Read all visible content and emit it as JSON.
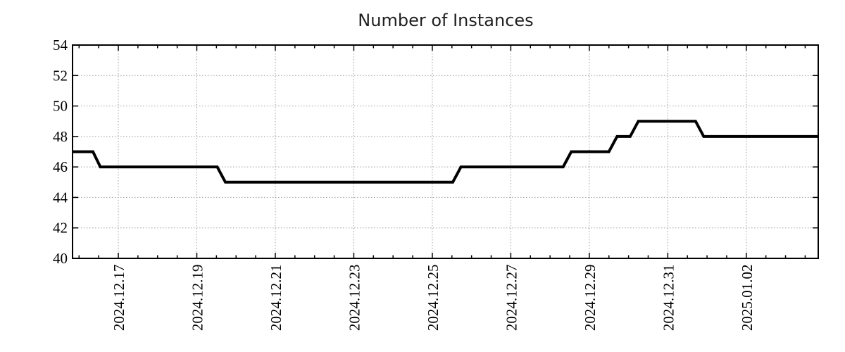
{
  "page": {
    "background": "#ffffff"
  },
  "chart_data": {
    "type": "line",
    "title": "Number of Instances",
    "title_color": "#1f1f1f",
    "legend": "none",
    "grid": {
      "style": "dotted",
      "color": "#9e9e9e"
    },
    "axis_color": "#000000",
    "tick_label_color": "#000000",
    "x_axis": {
      "domain_start": "2024-12-15 20:00",
      "domain_end": "2025-01-03 20:00",
      "major_tick_labels": [
        "2024.12.17",
        "2024.12.19",
        "2024.12.21",
        "2024.12.23",
        "2024.12.25",
        "2024.12.27",
        "2024.12.29",
        "2024.12.31",
        "2025.01.02"
      ],
      "major_tick_interval_days": 2,
      "minor_tick_interval_days": 0.5,
      "label_rotation_deg": -90
    },
    "y_axis": {
      "min": 40,
      "max": 54,
      "tick_step": 2,
      "tick_labels": [
        "54",
        "52",
        "50",
        "48",
        "46",
        "44",
        "42",
        "40"
      ]
    },
    "series": [
      {
        "name": "instances",
        "color": "#000000",
        "stroke_width": 4,
        "points": [
          {
            "t": "2024-12-15 20:00",
            "v": 47
          },
          {
            "t": "2024-12-16 08:30",
            "v": 47
          },
          {
            "t": "2024-12-16 13:00",
            "v": 46
          },
          {
            "t": "2024-12-19 12:30",
            "v": 46
          },
          {
            "t": "2024-12-19 17:30",
            "v": 45
          },
          {
            "t": "2024-12-25 12:30",
            "v": 45
          },
          {
            "t": "2024-12-25 17:30",
            "v": 46
          },
          {
            "t": "2024-12-28 08:00",
            "v": 46
          },
          {
            "t": "2024-12-28 13:00",
            "v": 47
          },
          {
            "t": "2024-12-29 12:00",
            "v": 47
          },
          {
            "t": "2024-12-29 17:00",
            "v": 48
          },
          {
            "t": "2024-12-30 01:00",
            "v": 48
          },
          {
            "t": "2024-12-30 06:00",
            "v": 49
          },
          {
            "t": "2024-12-31 17:00",
            "v": 49
          },
          {
            "t": "2024-12-31 22:00",
            "v": 48
          },
          {
            "t": "2025-01-03 20:00",
            "v": 48
          }
        ]
      }
    ]
  }
}
